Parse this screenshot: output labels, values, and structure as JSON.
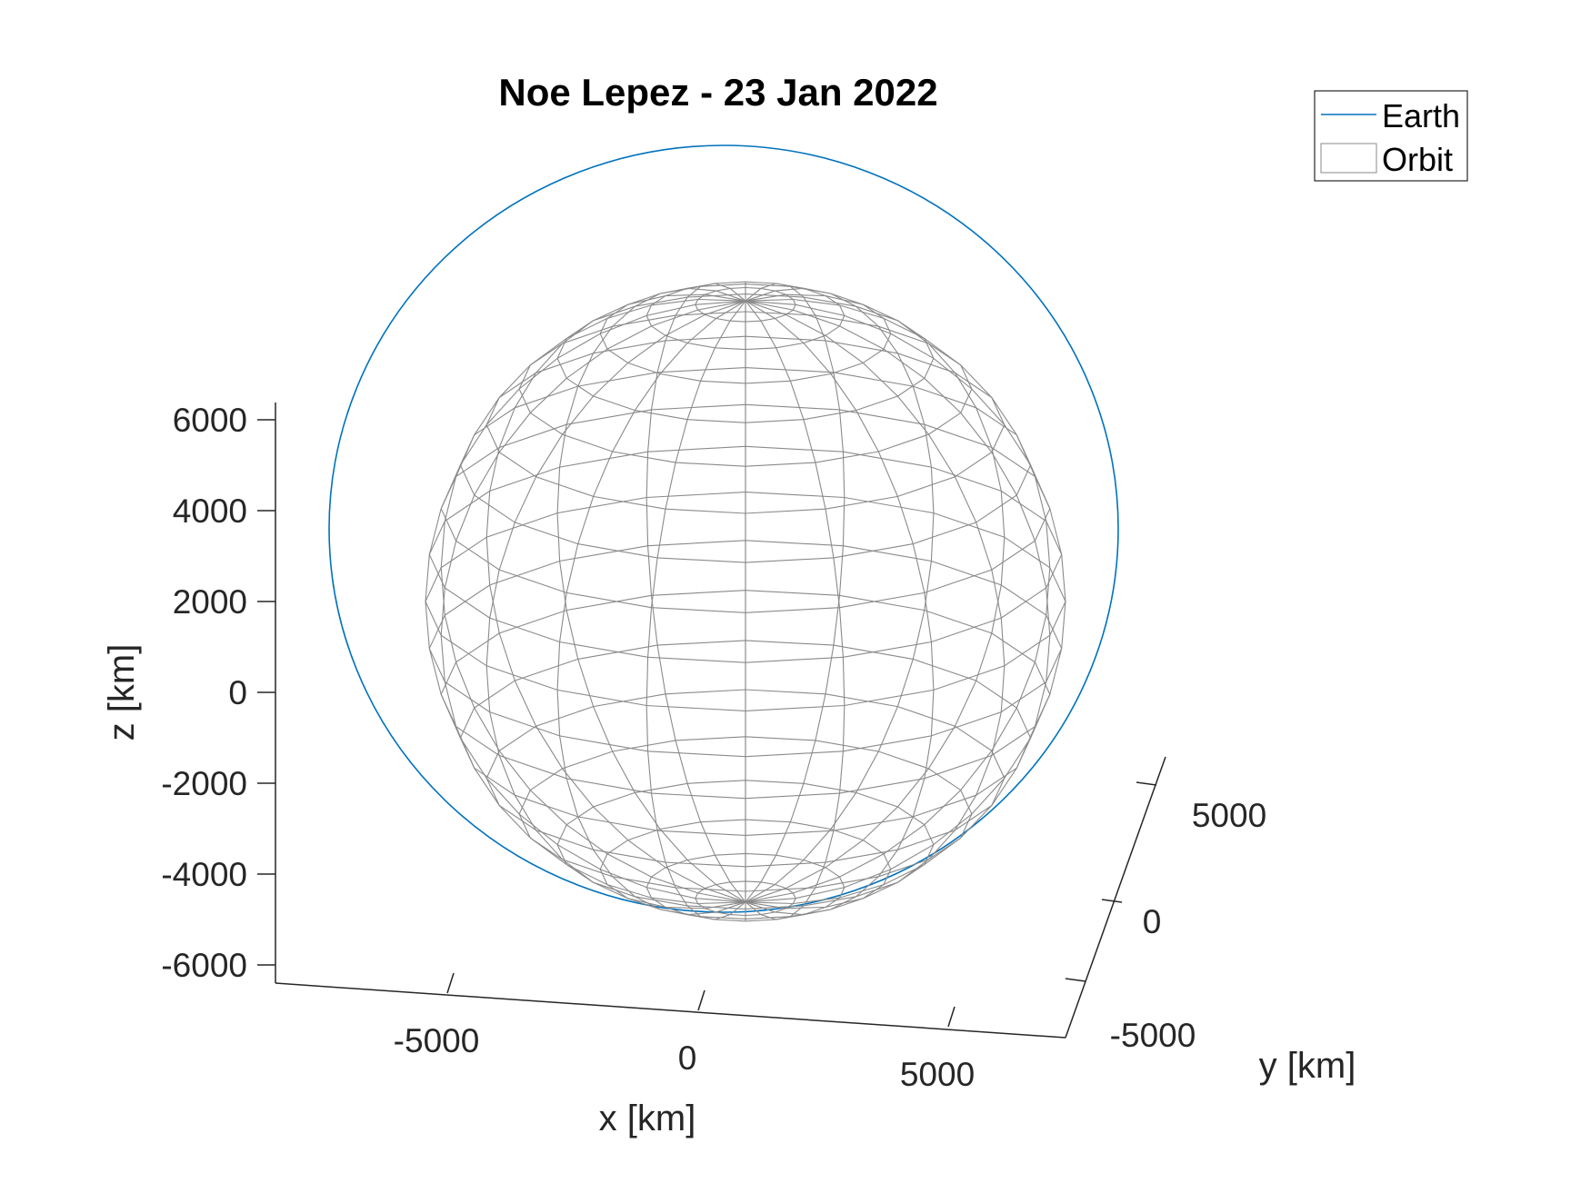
{
  "chart_data": {
    "type": "line",
    "title": "Noe Lepez - 23 Jan 2022",
    "xlabel": "x [km]",
    "ylabel": "y [km]",
    "zlabel": "z [km]",
    "x_ticks": [
      -5000,
      0,
      5000
    ],
    "y_ticks": [
      -5000,
      0,
      5000
    ],
    "z_ticks": [
      -6000,
      -4000,
      -2000,
      0,
      2000,
      4000,
      6000
    ],
    "x_tick_labels": [
      "-5000",
      "0",
      "5000"
    ],
    "y_tick_labels": [
      "-5000",
      "0",
      "5000"
    ],
    "z_tick_labels": [
      "-6000",
      "-4000",
      "-2000",
      "0",
      "2000",
      "4000",
      "6000"
    ],
    "zlim": [
      -6000,
      6000
    ],
    "grid": false,
    "legend_position": "top-right",
    "legend": [
      {
        "label": "Earth",
        "marker": "line",
        "color": "#0072BD"
      },
      {
        "label": "Orbit",
        "marker": "patch",
        "color": "#ffffff"
      }
    ],
    "series": [
      {
        "kind": "orbit-trajectory",
        "color": "#0072BD"
      },
      {
        "kind": "sphere-wireframe",
        "color": "#808080",
        "radius_km": 6378
      }
    ]
  },
  "colors": {
    "axis": "#262626",
    "orbit": "#0072BD",
    "mesh": "#8a8a8a",
    "title": "#000000"
  }
}
